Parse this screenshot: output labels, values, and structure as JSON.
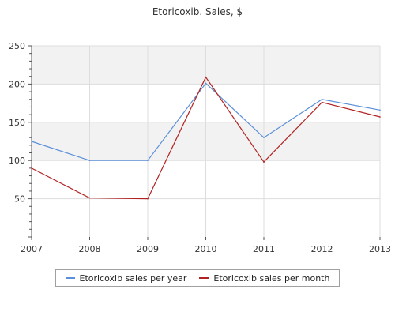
{
  "colors": {
    "series_year": "#5b8fd9",
    "series_month": "#b22222",
    "band_fill": "#f2f2f2",
    "grid": "#dddddd",
    "axis": "#555555"
  },
  "chart_data": {
    "type": "line",
    "title": "Etoricoxib. Sales, $",
    "xlabel": "",
    "ylabel": "",
    "categories": [
      "2007",
      "2008",
      "2009",
      "2010",
      "2011",
      "2012",
      "2013"
    ],
    "y_ticks": [
      "50",
      "100",
      "150",
      "200",
      "250"
    ],
    "ylim": [
      0,
      250
    ],
    "grid": true,
    "legend_position": "bottom",
    "series": [
      {
        "name": "Etoricoxib sales per year",
        "color": "#5b8fd9",
        "values": [
          125,
          100,
          100,
          201,
          130,
          180,
          166
        ]
      },
      {
        "name": "Etoricoxib sales per month",
        "color": "#b22222",
        "values": [
          90,
          51,
          50,
          209,
          98,
          176,
          157
        ]
      }
    ]
  }
}
